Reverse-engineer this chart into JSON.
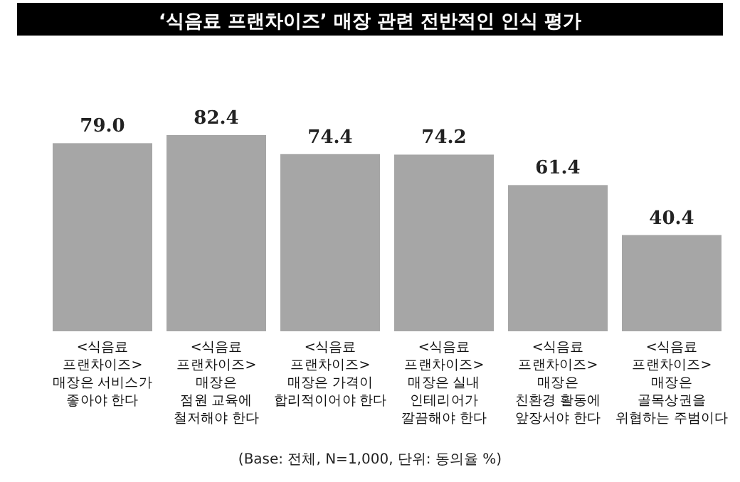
{
  "chart_data": {
    "type": "bar",
    "title": "‘식음료 프랜차이즈’ 매장 관련 전반적인 인식 평가",
    "categories": [
      "<식음료\n프랜차이즈>\n매장은 서비스가\n좋아야 한다",
      "<식음료\n프랜차이즈>\n매장은\n점원 교육에\n철저해야 한다",
      "<식음료\n프랜차이즈>\n매장은 가격이\n합리적이어야 한다",
      "<식음료\n프랜차이즈>\n매장은 실내\n인테리어가\n깔끔해야 한다",
      "<식음료\n프랜차이즈>\n매장은\n친환경 활동에\n앞장서야 한다",
      "<식음료\n프랜차이즈>\n매장은\n골목상권을\n위협하는 주범이다"
    ],
    "values": [
      79.0,
      82.4,
      74.4,
      74.2,
      61.4,
      40.4
    ],
    "value_labels": [
      "79.0",
      "82.4",
      "74.4",
      "74.2",
      "61.4",
      "40.4"
    ],
    "color": "#a6a6a6",
    "annotations": [
      "(Base: 전체, N=1,000, 단위: 동의율 %)"
    ]
  }
}
